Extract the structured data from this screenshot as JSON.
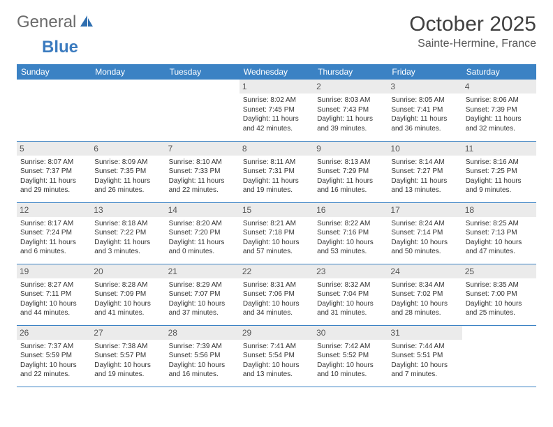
{
  "logo": {
    "part1": "General",
    "part2": "Blue"
  },
  "title": "October 2025",
  "location": "Sainte-Hermine, France",
  "colors": {
    "header_bg": "#3b82c4",
    "header_fg": "#ffffff",
    "daynum_bg": "#ebebeb",
    "border": "#3b82c4",
    "logo_gray": "#6b6b6b",
    "logo_blue": "#3b7bbf"
  },
  "weekdays": [
    "Sunday",
    "Monday",
    "Tuesday",
    "Wednesday",
    "Thursday",
    "Friday",
    "Saturday"
  ],
  "weeks": [
    [
      {
        "n": "",
        "sr": "",
        "ss": "",
        "dl": ""
      },
      {
        "n": "",
        "sr": "",
        "ss": "",
        "dl": ""
      },
      {
        "n": "",
        "sr": "",
        "ss": "",
        "dl": ""
      },
      {
        "n": "1",
        "sr": "Sunrise: 8:02 AM",
        "ss": "Sunset: 7:45 PM",
        "dl": "Daylight: 11 hours and 42 minutes."
      },
      {
        "n": "2",
        "sr": "Sunrise: 8:03 AM",
        "ss": "Sunset: 7:43 PM",
        "dl": "Daylight: 11 hours and 39 minutes."
      },
      {
        "n": "3",
        "sr": "Sunrise: 8:05 AM",
        "ss": "Sunset: 7:41 PM",
        "dl": "Daylight: 11 hours and 36 minutes."
      },
      {
        "n": "4",
        "sr": "Sunrise: 8:06 AM",
        "ss": "Sunset: 7:39 PM",
        "dl": "Daylight: 11 hours and 32 minutes."
      }
    ],
    [
      {
        "n": "5",
        "sr": "Sunrise: 8:07 AM",
        "ss": "Sunset: 7:37 PM",
        "dl": "Daylight: 11 hours and 29 minutes."
      },
      {
        "n": "6",
        "sr": "Sunrise: 8:09 AM",
        "ss": "Sunset: 7:35 PM",
        "dl": "Daylight: 11 hours and 26 minutes."
      },
      {
        "n": "7",
        "sr": "Sunrise: 8:10 AM",
        "ss": "Sunset: 7:33 PM",
        "dl": "Daylight: 11 hours and 22 minutes."
      },
      {
        "n": "8",
        "sr": "Sunrise: 8:11 AM",
        "ss": "Sunset: 7:31 PM",
        "dl": "Daylight: 11 hours and 19 minutes."
      },
      {
        "n": "9",
        "sr": "Sunrise: 8:13 AM",
        "ss": "Sunset: 7:29 PM",
        "dl": "Daylight: 11 hours and 16 minutes."
      },
      {
        "n": "10",
        "sr": "Sunrise: 8:14 AM",
        "ss": "Sunset: 7:27 PM",
        "dl": "Daylight: 11 hours and 13 minutes."
      },
      {
        "n": "11",
        "sr": "Sunrise: 8:16 AM",
        "ss": "Sunset: 7:25 PM",
        "dl": "Daylight: 11 hours and 9 minutes."
      }
    ],
    [
      {
        "n": "12",
        "sr": "Sunrise: 8:17 AM",
        "ss": "Sunset: 7:24 PM",
        "dl": "Daylight: 11 hours and 6 minutes."
      },
      {
        "n": "13",
        "sr": "Sunrise: 8:18 AM",
        "ss": "Sunset: 7:22 PM",
        "dl": "Daylight: 11 hours and 3 minutes."
      },
      {
        "n": "14",
        "sr": "Sunrise: 8:20 AM",
        "ss": "Sunset: 7:20 PM",
        "dl": "Daylight: 11 hours and 0 minutes."
      },
      {
        "n": "15",
        "sr": "Sunrise: 8:21 AM",
        "ss": "Sunset: 7:18 PM",
        "dl": "Daylight: 10 hours and 57 minutes."
      },
      {
        "n": "16",
        "sr": "Sunrise: 8:22 AM",
        "ss": "Sunset: 7:16 PM",
        "dl": "Daylight: 10 hours and 53 minutes."
      },
      {
        "n": "17",
        "sr": "Sunrise: 8:24 AM",
        "ss": "Sunset: 7:14 PM",
        "dl": "Daylight: 10 hours and 50 minutes."
      },
      {
        "n": "18",
        "sr": "Sunrise: 8:25 AM",
        "ss": "Sunset: 7:13 PM",
        "dl": "Daylight: 10 hours and 47 minutes."
      }
    ],
    [
      {
        "n": "19",
        "sr": "Sunrise: 8:27 AM",
        "ss": "Sunset: 7:11 PM",
        "dl": "Daylight: 10 hours and 44 minutes."
      },
      {
        "n": "20",
        "sr": "Sunrise: 8:28 AM",
        "ss": "Sunset: 7:09 PM",
        "dl": "Daylight: 10 hours and 41 minutes."
      },
      {
        "n": "21",
        "sr": "Sunrise: 8:29 AM",
        "ss": "Sunset: 7:07 PM",
        "dl": "Daylight: 10 hours and 37 minutes."
      },
      {
        "n": "22",
        "sr": "Sunrise: 8:31 AM",
        "ss": "Sunset: 7:06 PM",
        "dl": "Daylight: 10 hours and 34 minutes."
      },
      {
        "n": "23",
        "sr": "Sunrise: 8:32 AM",
        "ss": "Sunset: 7:04 PM",
        "dl": "Daylight: 10 hours and 31 minutes."
      },
      {
        "n": "24",
        "sr": "Sunrise: 8:34 AM",
        "ss": "Sunset: 7:02 PM",
        "dl": "Daylight: 10 hours and 28 minutes."
      },
      {
        "n": "25",
        "sr": "Sunrise: 8:35 AM",
        "ss": "Sunset: 7:00 PM",
        "dl": "Daylight: 10 hours and 25 minutes."
      }
    ],
    [
      {
        "n": "26",
        "sr": "Sunrise: 7:37 AM",
        "ss": "Sunset: 5:59 PM",
        "dl": "Daylight: 10 hours and 22 minutes."
      },
      {
        "n": "27",
        "sr": "Sunrise: 7:38 AM",
        "ss": "Sunset: 5:57 PM",
        "dl": "Daylight: 10 hours and 19 minutes."
      },
      {
        "n": "28",
        "sr": "Sunrise: 7:39 AM",
        "ss": "Sunset: 5:56 PM",
        "dl": "Daylight: 10 hours and 16 minutes."
      },
      {
        "n": "29",
        "sr": "Sunrise: 7:41 AM",
        "ss": "Sunset: 5:54 PM",
        "dl": "Daylight: 10 hours and 13 minutes."
      },
      {
        "n": "30",
        "sr": "Sunrise: 7:42 AM",
        "ss": "Sunset: 5:52 PM",
        "dl": "Daylight: 10 hours and 10 minutes."
      },
      {
        "n": "31",
        "sr": "Sunrise: 7:44 AM",
        "ss": "Sunset: 5:51 PM",
        "dl": "Daylight: 10 hours and 7 minutes."
      },
      {
        "n": "",
        "sr": "",
        "ss": "",
        "dl": ""
      }
    ]
  ]
}
